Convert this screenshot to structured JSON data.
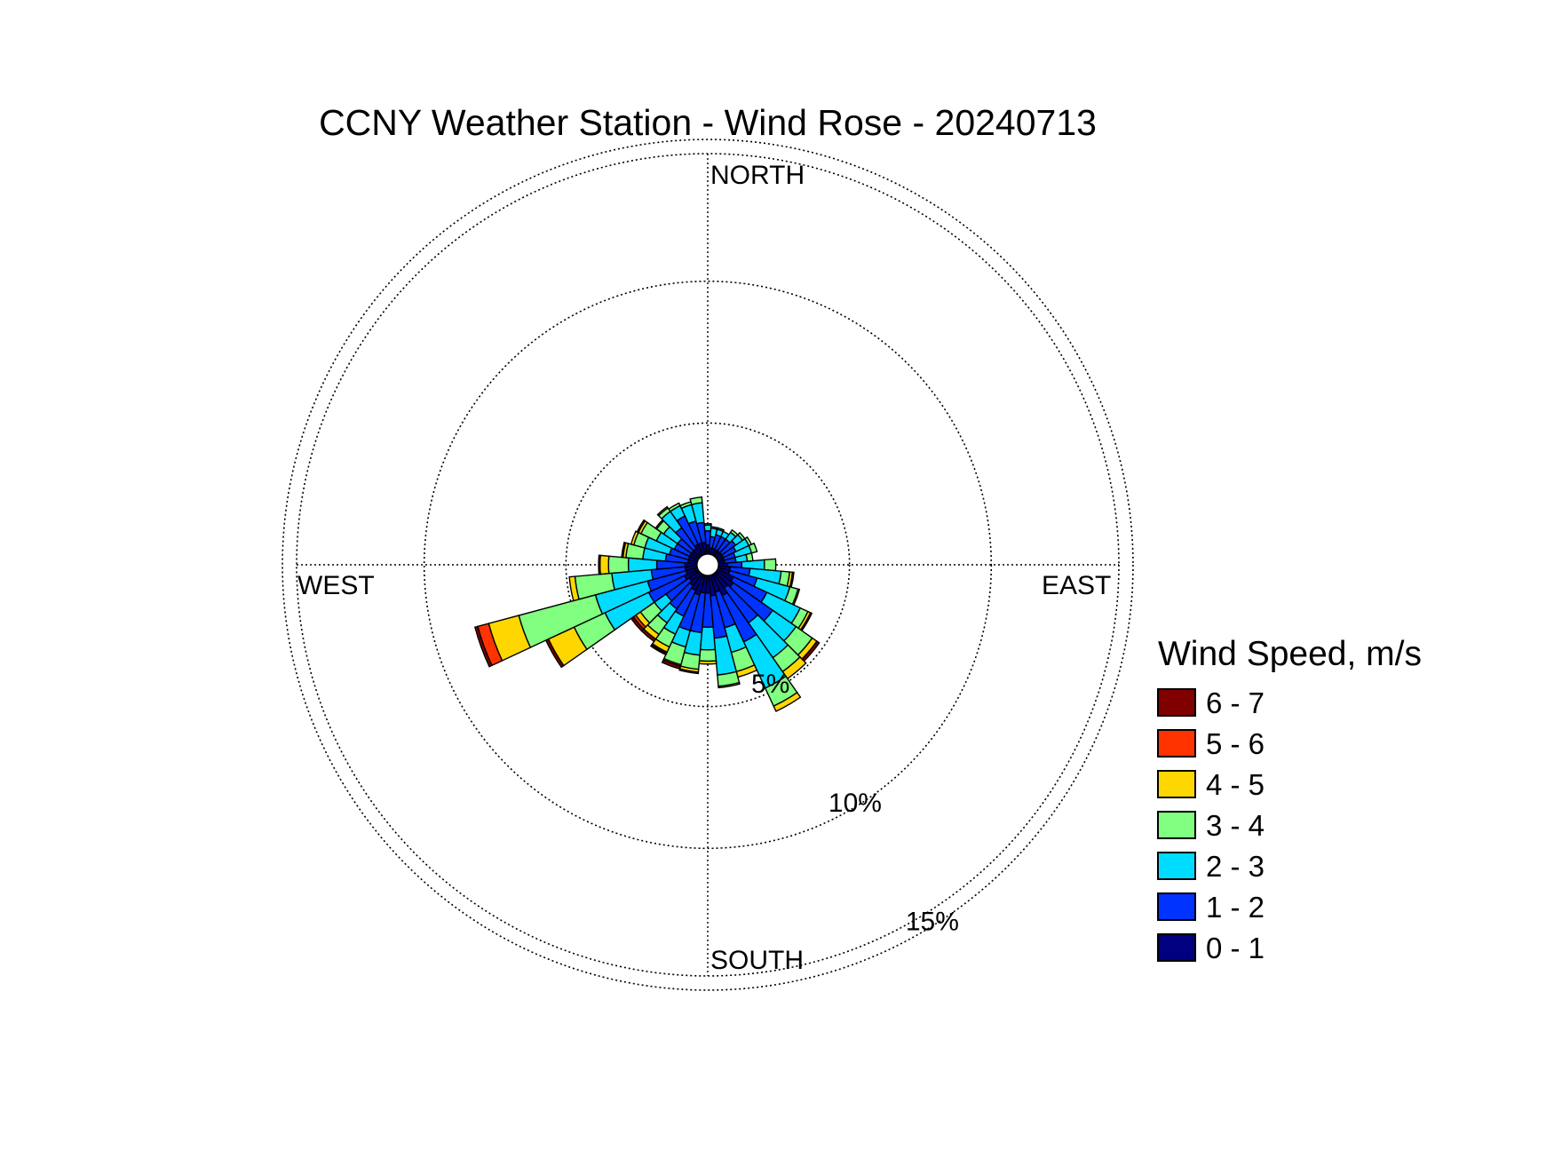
{
  "chart_data": {
    "type": "wind_rose",
    "title": "CCNY Weather Station - Wind Rose - 20240713",
    "direction_labels": {
      "north": "NORTH",
      "south": "SOUTH",
      "east": "EAST",
      "west": "WEST"
    },
    "radial_unit": "%",
    "radial_ticks": [
      5,
      10,
      15
    ],
    "radial_tick_labels": [
      "5%",
      "10%",
      "15%"
    ],
    "radial_max": 14.5,
    "grid": true,
    "legend": {
      "title": "Wind Speed, m/s",
      "placement": "right",
      "bins": [
        {
          "label": "6 - 7",
          "color": "#800000"
        },
        {
          "label": "5 - 6",
          "color": "#ff3300"
        },
        {
          "label": "4 - 5",
          "color": "#ffd700"
        },
        {
          "label": "3 - 4",
          "color": "#80ff80"
        },
        {
          "label": "2 - 3",
          "color": "#00dcff"
        },
        {
          "label": "1 - 2",
          "color": "#0033ff"
        },
        {
          "label": "0 - 1",
          "color": "#000080"
        }
      ]
    },
    "speed_bins_order": [
      "0 - 1",
      "1 - 2",
      "2 - 3",
      "3 - 4",
      "4 - 5",
      "5 - 6",
      "6 - 7"
    ],
    "sector_width_deg": 10,
    "sectors": [
      {
        "direction_deg": 0,
        "cumulative": [
          0.7,
          1.2,
          1.4,
          1.45,
          1.45,
          1.45,
          1.45
        ]
      },
      {
        "direction_deg": 10,
        "cumulative": [
          0.6,
          1.0,
          1.3,
          1.35,
          1.35,
          1.35,
          1.35
        ]
      },
      {
        "direction_deg": 20,
        "cumulative": [
          0.6,
          1.1,
          1.3,
          1.35,
          1.35,
          1.35,
          1.35
        ]
      },
      {
        "direction_deg": 30,
        "cumulative": [
          0.6,
          1.1,
          1.3,
          1.3,
          1.3,
          1.3,
          1.3
        ]
      },
      {
        "direction_deg": 40,
        "cumulative": [
          0.6,
          1.1,
          1.4,
          1.5,
          1.5,
          1.5,
          1.5
        ]
      },
      {
        "direction_deg": 50,
        "cumulative": [
          0.6,
          1.2,
          1.5,
          1.6,
          1.6,
          1.6,
          1.6
        ]
      },
      {
        "direction_deg": 60,
        "cumulative": [
          0.6,
          1.1,
          1.6,
          1.7,
          1.7,
          1.7,
          1.7
        ]
      },
      {
        "direction_deg": 70,
        "cumulative": [
          0.6,
          1.0,
          1.6,
          1.8,
          1.8,
          1.8,
          1.8
        ]
      },
      {
        "direction_deg": 80,
        "cumulative": [
          0.6,
          1.0,
          1.4,
          1.6,
          1.6,
          1.6,
          1.6
        ]
      },
      {
        "direction_deg": 90,
        "cumulative": [
          0.7,
          1.2,
          2.0,
          2.4,
          2.4,
          2.4,
          2.4
        ]
      },
      {
        "direction_deg": 100,
        "cumulative": [
          0.8,
          1.5,
          2.6,
          2.9,
          3.0,
          3.0,
          3.05
        ]
      },
      {
        "direction_deg": 110,
        "cumulative": [
          0.8,
          1.8,
          3.0,
          3.3,
          3.35,
          3.35,
          3.35
        ]
      },
      {
        "direction_deg": 120,
        "cumulative": [
          1.0,
          2.3,
          3.6,
          3.9,
          4.0,
          4.0,
          4.05
        ]
      },
      {
        "direction_deg": 130,
        "cumulative": [
          1.1,
          2.8,
          3.8,
          4.5,
          4.7,
          4.7,
          4.8
        ]
      },
      {
        "direction_deg": 140,
        "cumulative": [
          1.0,
          2.5,
          4.0,
          4.6,
          4.9,
          4.9,
          4.9
        ]
      },
      {
        "direction_deg": 150,
        "cumulative": [
          1.2,
          3.0,
          4.8,
          5.5,
          5.7,
          5.7,
          5.7
        ]
      },
      {
        "direction_deg": 160,
        "cumulative": [
          1.0,
          2.3,
          3.2,
          3.9,
          4.1,
          4.1,
          4.1
        ]
      },
      {
        "direction_deg": 170,
        "cumulative": [
          1.1,
          2.6,
          3.9,
          4.3,
          4.35,
          4.35,
          4.35
        ]
      },
      {
        "direction_deg": 180,
        "cumulative": [
          1.0,
          2.2,
          3.0,
          3.4,
          3.5,
          3.5,
          3.5
        ]
      },
      {
        "direction_deg": 190,
        "cumulative": [
          1.0,
          2.4,
          3.2,
          3.7,
          3.8,
          3.8,
          3.85
        ]
      },
      {
        "direction_deg": 200,
        "cumulative": [
          1.1,
          2.4,
          3.0,
          3.65,
          3.7,
          3.7,
          3.8
        ]
      },
      {
        "direction_deg": 210,
        "cumulative": [
          1.0,
          2.0,
          2.7,
          3.2,
          3.4,
          3.45,
          3.5
        ]
      },
      {
        "direction_deg": 220,
        "cumulative": [
          0.9,
          1.9,
          2.5,
          3.0,
          3.2,
          3.2,
          3.3
        ]
      },
      {
        "direction_deg": 230,
        "cumulative": [
          0.8,
          1.8,
          2.3,
          2.9,
          3.1,
          3.2,
          3.3
        ]
      },
      {
        "direction_deg": 240,
        "cumulative": [
          0.9,
          2.3,
          4.0,
          5.2,
          6.2,
          6.2,
          6.3
        ]
      },
      {
        "direction_deg": 250,
        "cumulative": [
          0.8,
          2.2,
          4.1,
          6.9,
          8.0,
          8.4,
          8.5
        ]
      },
      {
        "direction_deg": 260,
        "cumulative": [
          0.8,
          2.0,
          3.4,
          4.7,
          4.9,
          4.9,
          4.9
        ]
      },
      {
        "direction_deg": 270,
        "cumulative": [
          0.8,
          1.8,
          2.8,
          3.5,
          3.8,
          3.8,
          3.85
        ]
      },
      {
        "direction_deg": 280,
        "cumulative": [
          0.7,
          1.5,
          2.3,
          2.9,
          3.0,
          3.0,
          3.05
        ]
      },
      {
        "direction_deg": 290,
        "cumulative": [
          0.7,
          1.4,
          2.3,
          2.7,
          2.8,
          2.8,
          2.8
        ]
      },
      {
        "direction_deg": 300,
        "cumulative": [
          0.7,
          1.3,
          2.0,
          2.6,
          2.7,
          2.7,
          2.75
        ]
      },
      {
        "direction_deg": 310,
        "cumulative": [
          0.7,
          1.3,
          1.9,
          2.2,
          2.25,
          2.25,
          2.25
        ]
      },
      {
        "direction_deg": 320,
        "cumulative": [
          0.7,
          1.6,
          2.3,
          2.45,
          2.5,
          2.5,
          2.5
        ]
      },
      {
        "direction_deg": 330,
        "cumulative": [
          0.8,
          1.9,
          2.3,
          2.4,
          2.4,
          2.4,
          2.4
        ]
      },
      {
        "direction_deg": 340,
        "cumulative": [
          0.8,
          1.6,
          2.2,
          2.3,
          2.3,
          2.3,
          2.3
        ]
      },
      {
        "direction_deg": 350,
        "cumulative": [
          0.8,
          1.5,
          2.2,
          2.4,
          2.4,
          2.4,
          2.4
        ]
      }
    ]
  }
}
